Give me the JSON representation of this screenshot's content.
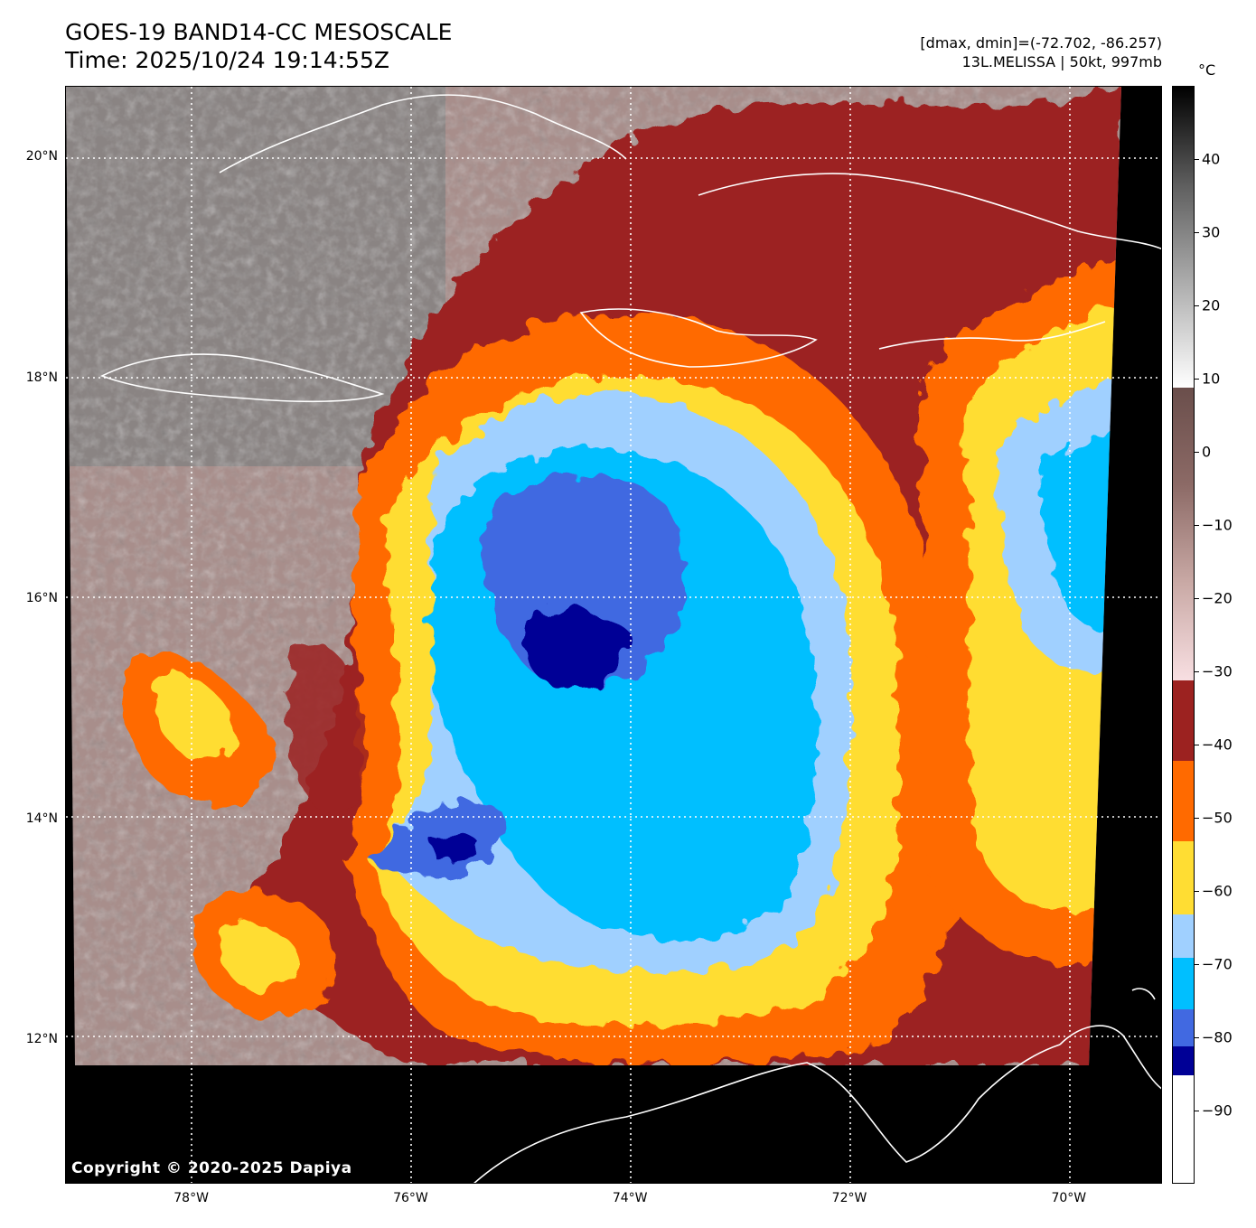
{
  "title": {
    "line1": "GOES-19 BAND14-CC MESOSCALE",
    "line2": "Time: 2025/10/24 19:14:55Z"
  },
  "info": {
    "line1": "[dmax, dmin]=(-72.702, -86.257)",
    "line2": "13L.MELISSA | 50kt, 997mb"
  },
  "colorbar": {
    "unit": "°C",
    "range": [
      -100,
      50
    ],
    "ticks": [
      "40",
      "30",
      "20",
      "10",
      "0",
      "−10",
      "−20",
      "−30",
      "−40",
      "−50",
      "−60",
      "−70",
      "−80",
      "−90"
    ],
    "tick_values": [
      40,
      30,
      20,
      10,
      0,
      -10,
      -20,
      -30,
      -40,
      -50,
      -60,
      -70,
      -80,
      -90
    ],
    "bands": [
      {
        "from": -100,
        "to": -85,
        "color": "#ffffff"
      },
      {
        "from": -85,
        "to": -81,
        "color": "#000096"
      },
      {
        "from": -81,
        "to": -76,
        "color": "#4169e1"
      },
      {
        "from": -76,
        "to": -69,
        "color": "#00bfff"
      },
      {
        "from": -69,
        "to": -63,
        "color": "#a0d0ff"
      },
      {
        "from": -63,
        "to": -53,
        "color": "#ffdd33"
      },
      {
        "from": -53,
        "to": -42,
        "color": "#ff6a00"
      },
      {
        "from": -42,
        "to": -31,
        "color": "#9c2220"
      },
      {
        "from": -31,
        "to": 9,
        "gradient": [
          "#f8dfe2",
          "#c9a9a5",
          "#8c6a66",
          "#6a4e4b"
        ]
      },
      {
        "from": 9,
        "to": 50,
        "gradient": [
          "#ffffff",
          "#b0b0b0",
          "#606060",
          "#000000"
        ]
      }
    ]
  },
  "map": {
    "lat_range": [
      10.7,
      20.65
    ],
    "lon_range": [
      -79.15,
      -69.15
    ],
    "lat_labels": [
      "20°N",
      "18°N",
      "16°N",
      "14°N",
      "12°N"
    ],
    "lat_values": [
      20,
      18,
      16,
      14,
      12
    ],
    "lon_labels": [
      "78°W",
      "76°W",
      "74°W",
      "72°W",
      "70°W"
    ],
    "lon_values": [
      -78,
      -76,
      -74,
      -72,
      -70
    ],
    "copyright": "Copyright © 2020-2025 Dapiya",
    "colors": {
      "clear_dark": "#6e6462",
      "clear_light": "#d8c8c6",
      "grey_cloud": "#9a9a9a",
      "coast": "#ffffff",
      "grid": "#ffffff"
    }
  }
}
